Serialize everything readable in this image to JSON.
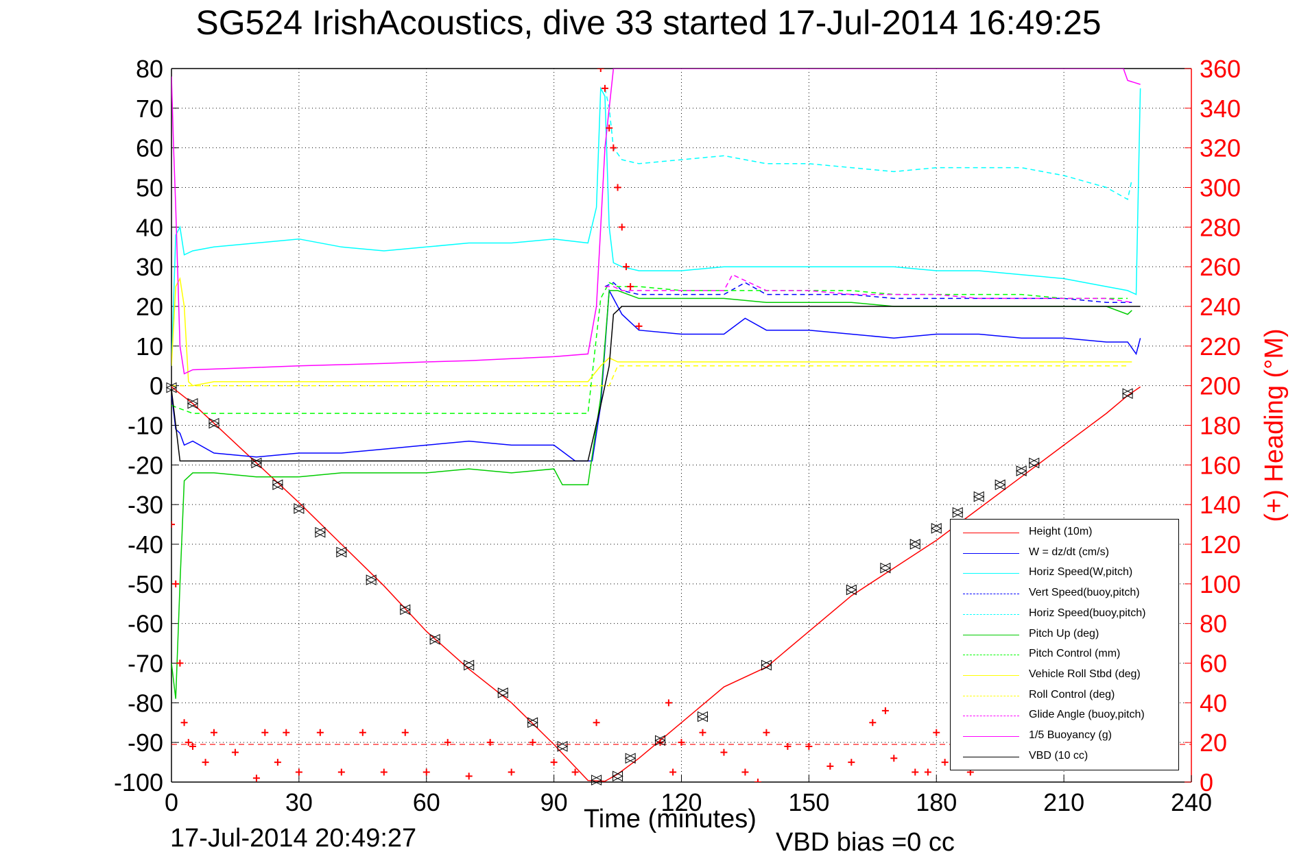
{
  "title": "SG524 IrishAcoustics, dive 33 started 17-Jul-2014 16:49:25",
  "footer": {
    "timestamp": "17-Jul-2014 20:49:27",
    "vbd_bias": "VBD bias =0 cc"
  },
  "chart_data": {
    "type": "line",
    "xlabel": "Time (minutes)",
    "ylabel": "",
    "y2label": "(+) Heading (°M)",
    "xlim": [
      0,
      240
    ],
    "ylim": [
      -100,
      80
    ],
    "y2lim": [
      0,
      360
    ],
    "xticks": [
      0,
      30,
      60,
      90,
      120,
      150,
      180,
      210,
      240
    ],
    "yticks": [
      -100,
      -90,
      -80,
      -70,
      -60,
      -50,
      -40,
      -30,
      -20,
      -10,
      0,
      10,
      20,
      30,
      40,
      50,
      60,
      70,
      80
    ],
    "y2ticks": [
      0,
      20,
      40,
      60,
      80,
      100,
      120,
      140,
      160,
      180,
      200,
      220,
      240,
      260,
      280,
      300,
      320,
      340,
      360
    ],
    "grid": true,
    "legend_position": "bottom-right",
    "colors": {
      "heading": "#ff0000",
      "y2axis": "#ff0000"
    },
    "series": [
      {
        "name": "Height (10m)",
        "color": "#ff0000",
        "style": "solid",
        "x": [
          0,
          5,
          10,
          20,
          30,
          40,
          50,
          60,
          70,
          80,
          90,
          98,
          102,
          105,
          110,
          120,
          130,
          140,
          150,
          160,
          170,
          180,
          190,
          200,
          210,
          220,
          225,
          228
        ],
        "y": [
          -0.3,
          -4.5,
          -9.5,
          -19.5,
          -29.5,
          -40,
          -50.5,
          -62,
          -71.5,
          -80,
          -90.5,
          -99.6,
          -99.8,
          -98,
          -94,
          -85,
          -76,
          -71,
          -62,
          -53,
          -46,
          -39,
          -31,
          -23,
          -15,
          -7,
          -2.5,
          -0.3
        ]
      },
      {
        "name": "W = dz/dt (cm/s)",
        "color": "#0000ff",
        "style": "solid",
        "x": [
          0,
          1,
          2,
          3,
          5,
          10,
          20,
          30,
          40,
          50,
          60,
          70,
          80,
          90,
          95,
          99,
          101,
          103,
          104,
          106,
          110,
          120,
          130,
          135,
          140,
          150,
          160,
          170,
          180,
          190,
          200,
          210,
          220,
          225,
          227,
          228
        ],
        "y": [
          -2,
          -11,
          -12,
          -15,
          -14,
          -17,
          -18,
          -17,
          -17,
          -16,
          -15,
          -14,
          -15,
          -15,
          -19,
          -19,
          -5,
          24,
          22,
          18,
          14,
          13,
          13,
          17,
          14,
          14,
          13,
          12,
          13,
          13,
          12,
          12,
          11,
          11,
          8,
          12
        ]
      },
      {
        "name": "Horiz Speed(W,pitch)",
        "color": "#00ffff",
        "style": "solid",
        "x": [
          0,
          1,
          2,
          3,
          5,
          10,
          20,
          30,
          40,
          50,
          60,
          70,
          80,
          90,
          98,
          100,
          101,
          102,
          103,
          104,
          106,
          110,
          120,
          130,
          140,
          150,
          160,
          170,
          180,
          190,
          200,
          210,
          220,
          225,
          227,
          228
        ],
        "y": [
          5,
          38,
          40,
          33,
          34,
          35,
          36,
          37,
          35,
          34,
          35,
          36,
          36,
          37,
          36,
          45,
          75,
          73,
          40,
          31,
          30,
          29,
          29,
          30,
          30,
          30,
          30,
          30,
          29,
          29,
          28,
          27,
          25,
          24,
          23,
          75
        ]
      },
      {
        "name": "Vert Speed(buoy,pitch)",
        "color": "#0000ff",
        "style": "dashed",
        "x": [
          102,
          104,
          106,
          110,
          120,
          130,
          135,
          140,
          150,
          160,
          170,
          180,
          190,
          200,
          210,
          220,
          226
        ],
        "y": [
          25,
          26,
          24,
          23,
          23,
          23,
          26,
          23,
          23,
          23,
          22,
          22,
          22,
          22,
          22,
          21,
          21
        ]
      },
      {
        "name": "Horiz Speed(buoy,pitch)",
        "color": "#00ffff",
        "style": "dashed",
        "x": [
          102,
          103,
          104,
          106,
          110,
          120,
          130,
          140,
          150,
          160,
          170,
          180,
          190,
          200,
          210,
          220,
          225,
          226
        ],
        "y": [
          75,
          70,
          60,
          57,
          56,
          57,
          58,
          56,
          56,
          55,
          54,
          55,
          55,
          55,
          53,
          50,
          47,
          52
        ]
      },
      {
        "name": "Pitch Up (deg)",
        "color": "#00cc00",
        "style": "solid",
        "x": [
          0,
          1,
          2,
          3,
          5,
          10,
          20,
          30,
          40,
          50,
          60,
          70,
          80,
          90,
          92,
          98,
          101,
          103,
          105,
          110,
          120,
          130,
          140,
          150,
          160,
          170,
          180,
          190,
          200,
          210,
          220,
          225,
          226
        ],
        "y": [
          -70,
          -79,
          -50,
          -24,
          -22,
          -22,
          -23,
          -23,
          -22,
          -22,
          -22,
          -21,
          -22,
          -21,
          -25,
          -25,
          -3,
          24,
          24,
          22,
          22,
          22,
          21,
          21,
          21,
          20,
          20,
          20,
          20,
          20,
          20,
          18,
          19
        ]
      },
      {
        "name": "Pitch Control (mm)",
        "color": "#00ff00",
        "style": "dashed",
        "x": [
          0,
          5,
          10,
          20,
          30,
          40,
          50,
          60,
          70,
          80,
          90,
          98,
          101,
          103,
          105,
          110,
          120,
          130,
          140,
          150,
          160,
          170,
          180,
          190,
          200,
          210,
          220,
          225
        ],
        "y": [
          -5,
          -7,
          -7,
          -7,
          -7,
          -7,
          -7,
          -7,
          -7,
          -7,
          -7,
          -7,
          22,
          26,
          25,
          25,
          24,
          24,
          24,
          24,
          24,
          23,
          23,
          23,
          23,
          22,
          22,
          22
        ]
      },
      {
        "name": "Vehicle Roll Stbd (deg)",
        "color": "#ffff00",
        "style": "solid",
        "x": [
          0,
          1,
          2,
          3,
          4,
          5,
          10,
          20,
          30,
          40,
          50,
          60,
          70,
          80,
          90,
          98,
          101,
          103,
          105,
          110,
          120,
          130,
          140,
          150,
          160,
          170,
          180,
          190,
          200,
          210,
          220,
          225,
          226
        ],
        "y": [
          5,
          25,
          27,
          20,
          1,
          0,
          1,
          1,
          1,
          1,
          1,
          1,
          1,
          1,
          1,
          1,
          5,
          7,
          6,
          6,
          6,
          6,
          6,
          6,
          6,
          6,
          6,
          6,
          6,
          6,
          6,
          6,
          6
        ]
      },
      {
        "name": "Roll Control (deg)",
        "color": "#ffff00",
        "style": "dashed",
        "x": [
          0,
          5,
          10,
          20,
          30,
          40,
          50,
          60,
          70,
          80,
          90,
          100,
          103,
          105,
          110,
          120,
          130,
          140,
          150,
          160,
          170,
          180,
          190,
          200,
          210,
          220,
          225
        ],
        "y": [
          0,
          0,
          0,
          0,
          0,
          0,
          0,
          0,
          0,
          0,
          0,
          0,
          0,
          5,
          5,
          5,
          5,
          5,
          5,
          5,
          5,
          5,
          5,
          5,
          5,
          5,
          5
        ]
      },
      {
        "name": "Glide Angle (buoy,pitch)",
        "color": "#ff00ff",
        "style": "dashed",
        "x": [
          102,
          104,
          106,
          110,
          120,
          130,
          132,
          140,
          150,
          160,
          170,
          180,
          190,
          200,
          210,
          220,
          226
        ],
        "y": [
          25,
          25,
          24,
          24,
          24,
          24,
          28,
          24,
          24,
          23,
          23,
          23,
          22,
          22,
          22,
          22,
          21
        ]
      },
      {
        "name": "1/5 Buoyancy (g)",
        "color": "#ff00ff",
        "style": "solid",
        "x": [
          0,
          0.5,
          1,
          2,
          3,
          5,
          10,
          20,
          30,
          40,
          50,
          60,
          70,
          80,
          90,
          98,
          100,
          102,
          104,
          106,
          110,
          120,
          220,
          224,
          225,
          228
        ],
        "y": [
          78,
          60,
          45,
          10,
          3,
          4,
          4.2,
          4.6,
          5,
          5.3,
          5.6,
          6,
          6.3,
          6.8,
          7.3,
          8,
          20,
          60,
          80,
          80,
          80,
          80,
          80,
          80,
          77,
          76
        ]
      },
      {
        "name": "VBD (10 cc)",
        "color": "#000000",
        "style": "solid",
        "x": [
          0,
          1,
          2,
          3,
          5,
          10,
          30,
          60,
          90,
          98,
          101,
          103,
          104,
          106,
          110,
          150,
          200,
          225,
          226,
          228
        ],
        "y": [
          -1,
          -10,
          -19,
          -19,
          -19,
          -19,
          -19,
          -19,
          -19,
          -19,
          -5,
          5,
          18,
          20,
          20,
          20,
          20,
          20,
          20,
          20
        ]
      },
      {
        "name": "heading",
        "color": "#ff0000",
        "style": "plus",
        "axis": "y2",
        "x": [
          0,
          1,
          2,
          3,
          4,
          5,
          8,
          10,
          15,
          20,
          22,
          25,
          27,
          30,
          35,
          40,
          45,
          50,
          55,
          60,
          65,
          70,
          75,
          80,
          85,
          90,
          95,
          100,
          101,
          102,
          103,
          104,
          105,
          106,
          107,
          108,
          110,
          115,
          117,
          118,
          120,
          125,
          130,
          135,
          138,
          140,
          145,
          150,
          155,
          160,
          165,
          168,
          170,
          175,
          178,
          180,
          182,
          185,
          188,
          190
        ],
        "y": [
          130,
          100,
          60,
          30,
          20,
          18,
          10,
          25,
          15,
          2,
          25,
          10,
          25,
          5,
          25,
          5,
          25,
          5,
          25,
          5,
          20,
          3,
          20,
          5,
          20,
          10,
          5,
          30,
          360,
          350,
          330,
          320,
          300,
          280,
          260,
          250,
          230,
          20,
          40,
          5,
          20,
          25,
          15,
          5,
          0,
          25,
          18,
          18,
          8,
          10,
          30,
          36,
          12,
          5,
          5,
          25,
          10,
          25,
          5,
          20
        ]
      }
    ],
    "heading_reference": {
      "y2": 19,
      "color": "#ff0000",
      "style": "dashed"
    },
    "markers": {
      "description_markers": "triangle",
      "x": [
        0,
        5,
        10,
        20,
        25,
        30,
        35,
        40,
        47,
        55,
        62,
        70,
        78,
        85,
        92,
        100,
        105,
        108,
        115,
        125,
        140,
        160,
        168,
        175,
        180,
        185,
        190,
        195,
        200,
        203,
        225
      ],
      "y": [
        -0.5,
        -4.5,
        -9.5,
        -19.5,
        -25,
        -31,
        -37,
        -42,
        -49,
        -56.5,
        -64,
        -70.5,
        -77.5,
        -85,
        -91,
        -99.5,
        -98.5,
        -94,
        -89.5,
        -83.5,
        -70.5,
        -51.5,
        -46,
        -40,
        -36,
        -32,
        -28,
        -25,
        -21.5,
        -19.5,
        -2
      ]
    }
  }
}
